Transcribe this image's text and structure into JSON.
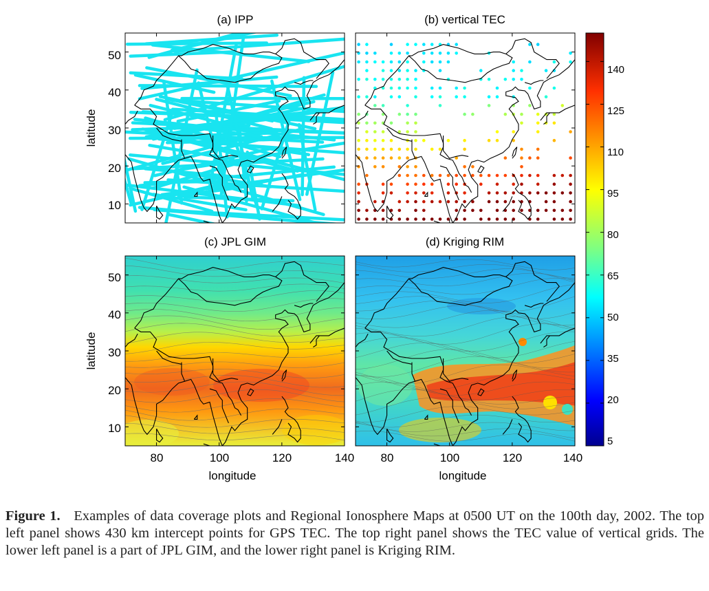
{
  "panels": {
    "a": {
      "title": "(a) IPP"
    },
    "b": {
      "title": "(b) vertical TEC"
    },
    "c": {
      "title": "(c) JPL GIM"
    },
    "d": {
      "title": "(d) Kriging RIM"
    }
  },
  "axes": {
    "xlabel": "longitude",
    "ylabel": "latitude",
    "x_ticks": [
      "80",
      "100",
      "120",
      "140"
    ],
    "y_ticks": [
      "50",
      "40",
      "30",
      "20",
      "10"
    ]
  },
  "colorbar": {
    "ticks": [
      "140",
      "125",
      "110",
      "95",
      "80",
      "65",
      "50",
      "35",
      "20",
      "5"
    ]
  },
  "caption": {
    "label": "Figure 1.",
    "text": "Examples of data coverage plots and Regional Ionosphere Maps at 0500 UT on the 100th day, 2002. The top left panel shows 430 km intercept points for GPS TEC. The top right panel shows the TEC value of vertical grids. The lower left panel is a part of JPL GIM, and the lower right panel is Kriging RIM."
  },
  "colors": {
    "ipp": "#19e4f0",
    "jet": [
      "#00008f",
      "#0000ff",
      "#0080ff",
      "#00ffff",
      "#80ff80",
      "#ffff00",
      "#ff8000",
      "#ff0000",
      "#800000"
    ]
  },
  "chart_data": [
    {
      "type": "scatter",
      "title": "(a) IPP",
      "xlabel": "",
      "ylabel": "latitude",
      "xlim": [
        70,
        140
      ],
      "ylim": [
        5,
        55
      ],
      "x_ticks": [
        80,
        100,
        120,
        140
      ],
      "y_ticks": [
        10,
        20,
        30,
        40,
        50
      ]
    },
    {
      "type": "scatter",
      "title": "(b) vertical TEC",
      "xlim": [
        70,
        140
      ],
      "ylim": [
        5,
        55
      ],
      "x_ticks": [
        80,
        100,
        120,
        140
      ],
      "y_ticks": [
        10,
        20,
        30,
        40,
        50
      ],
      "colorbar": [
        5,
        150
      ]
    },
    {
      "type": "heatmap",
      "title": "(c) JPL GIM",
      "xlabel": "longitude",
      "ylabel": "latitude",
      "xlim": [
        70,
        140
      ],
      "ylim": [
        5,
        55
      ],
      "x_ticks": [
        80,
        100,
        120,
        140
      ],
      "y_ticks": [
        10,
        20,
        30,
        40,
        50
      ]
    },
    {
      "type": "heatmap",
      "title": "(d) Kriging RIM",
      "xlabel": "longitude",
      "xlim": [
        70,
        140
      ],
      "ylim": [
        5,
        55
      ],
      "x_ticks": [
        80,
        100,
        120,
        140
      ],
      "y_ticks": [
        10,
        20,
        30,
        40,
        50
      ],
      "colorbar": [
        5,
        150
      ]
    },
    {
      "type": "heatmap",
      "title": "",
      "colorbar_range": [
        5,
        150
      ],
      "colorbar_ticks": [
        5,
        20,
        35,
        50,
        65,
        80,
        95,
        110,
        125,
        140
      ]
    }
  ]
}
